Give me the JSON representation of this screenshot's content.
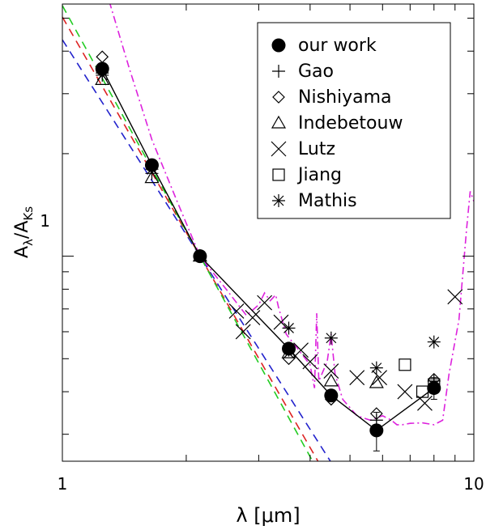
{
  "chart_data": {
    "type": "scatter",
    "xscale": "log",
    "yscale": "log",
    "xlim": [
      1,
      10
    ],
    "ylim": [
      0.25,
      5.5
    ],
    "xlabel": "λ [μm]",
    "ylabel_main": "A",
    "ylabel_sub1": "λ",
    "ylabel_slash": "/A",
    "ylabel_sub2": "Ks",
    "x_ticks": [
      {
        "value": 1,
        "label": "1"
      },
      {
        "value": 10,
        "label": "10"
      }
    ],
    "y_ticks": [
      {
        "value": 1,
        "label": "1"
      }
    ],
    "legend": {
      "position": "top-right",
      "entries": [
        {
          "marker": "filled-circle",
          "label": "our work"
        },
        {
          "marker": "plus",
          "label": "Gao"
        },
        {
          "marker": "diamond",
          "label": "Nishiyama"
        },
        {
          "marker": "triangle",
          "label": "Indebetouw"
        },
        {
          "marker": "cross",
          "label": "Lutz"
        },
        {
          "marker": "square",
          "label": "Jiang"
        },
        {
          "marker": "asterisk",
          "label": "Mathis"
        }
      ]
    },
    "series": [
      {
        "marker": "filled-circle",
        "connect": true,
        "points": [
          [
            1.25,
            3.55
          ],
          [
            1.65,
            1.85
          ],
          [
            2.16,
            1.0
          ],
          [
            3.55,
            0.535
          ],
          [
            4.5,
            0.39
          ],
          [
            5.8,
            0.308
          ],
          [
            8.0,
            0.41
          ]
        ],
        "yerr": [
          [
            5.8,
            0.04
          ],
          [
            8.0,
            0.03
          ]
        ]
      },
      {
        "marker": "plus",
        "points": [
          [
            1.25,
            3.45
          ],
          [
            1.65,
            1.75
          ],
          [
            2.16,
            1.0
          ],
          [
            3.55,
            0.53
          ],
          [
            4.5,
            0.39
          ],
          [
            5.8,
            0.33
          ],
          [
            8.0,
            0.43
          ]
        ]
      },
      {
        "marker": "diamond",
        "points": [
          [
            1.25,
            3.85
          ],
          [
            1.65,
            1.85
          ],
          [
            2.16,
            1.0
          ],
          [
            3.55,
            0.5
          ],
          [
            4.5,
            0.38
          ],
          [
            5.8,
            0.345
          ],
          [
            8.0,
            0.435
          ]
        ]
      },
      {
        "marker": "triangle",
        "points": [
          [
            1.25,
            3.3
          ],
          [
            1.65,
            1.7
          ],
          [
            2.16,
            1.0
          ],
          [
            3.55,
            0.52
          ],
          [
            4.5,
            0.43
          ],
          [
            5.8,
            0.425
          ]
        ]
      },
      {
        "marker": "cross",
        "points": [
          [
            2.65,
            0.69
          ],
          [
            2.75,
            0.6
          ],
          [
            2.9,
            0.66
          ],
          [
            3.1,
            0.73
          ],
          [
            3.4,
            0.64
          ],
          [
            3.8,
            0.53
          ],
          [
            4.0,
            0.49
          ],
          [
            4.5,
            0.46
          ],
          [
            5.2,
            0.44
          ],
          [
            5.9,
            0.44
          ],
          [
            6.8,
            0.4
          ],
          [
            7.6,
            0.37
          ],
          [
            9.0,
            0.76
          ]
        ]
      },
      {
        "marker": "square",
        "points": [
          [
            6.8,
            0.48
          ],
          [
            7.5,
            0.4
          ],
          [
            8.0,
            0.42
          ]
        ]
      },
      {
        "marker": "asterisk",
        "points": [
          [
            1.25,
            3.4
          ],
          [
            1.65,
            1.8
          ],
          [
            2.16,
            1.0
          ],
          [
            3.55,
            0.615
          ],
          [
            4.5,
            0.575
          ],
          [
            5.8,
            0.47
          ],
          [
            8.0,
            0.56
          ]
        ]
      }
    ],
    "power_law_lines": [
      {
        "color": "#2222cc",
        "x0": 2.16,
        "y0": 1.0,
        "alpha": 1.9,
        "x_end": 6.0
      },
      {
        "color": "#dd2222",
        "x0": 2.16,
        "y0": 1.0,
        "alpha": 2.1,
        "x_end": 4.9
      },
      {
        "color": "#22cc22",
        "x0": 2.16,
        "y0": 1.0,
        "alpha": 2.2,
        "x_end": 4.4
      }
    ],
    "model_curve": {
      "color": "#dd22dd",
      "points": [
        [
          1.3,
          5.6
        ],
        [
          1.45,
          3.6
        ],
        [
          1.65,
          2.2
        ],
        [
          1.9,
          1.45
        ],
        [
          2.16,
          1.0
        ],
        [
          2.5,
          0.8
        ],
        [
          2.8,
          0.67
        ],
        [
          3.0,
          0.72
        ],
        [
          3.1,
          0.78
        ],
        [
          3.2,
          0.74
        ],
        [
          3.3,
          0.77
        ],
        [
          3.35,
          0.71
        ],
        [
          3.5,
          0.59
        ],
        [
          3.8,
          0.52
        ],
        [
          4.0,
          0.48
        ],
        [
          4.1,
          0.41
        ],
        [
          4.15,
          0.68
        ],
        [
          4.2,
          0.43
        ],
        [
          4.4,
          0.49
        ],
        [
          4.5,
          0.59
        ],
        [
          4.6,
          0.45
        ],
        [
          4.8,
          0.38
        ],
        [
          5.2,
          0.34
        ],
        [
          5.6,
          0.33
        ],
        [
          6.0,
          0.34
        ],
        [
          6.3,
          0.33
        ],
        [
          6.5,
          0.32
        ],
        [
          6.7,
          0.32
        ],
        [
          7.0,
          0.323
        ],
        [
          7.5,
          0.324
        ],
        [
          8.0,
          0.32
        ],
        [
          8.4,
          0.33
        ],
        [
          8.7,
          0.45
        ],
        [
          9.2,
          0.65
        ],
        [
          9.6,
          1.2
        ],
        [
          9.8,
          1.55
        ],
        [
          10.0,
          1.45
        ]
      ]
    }
  }
}
